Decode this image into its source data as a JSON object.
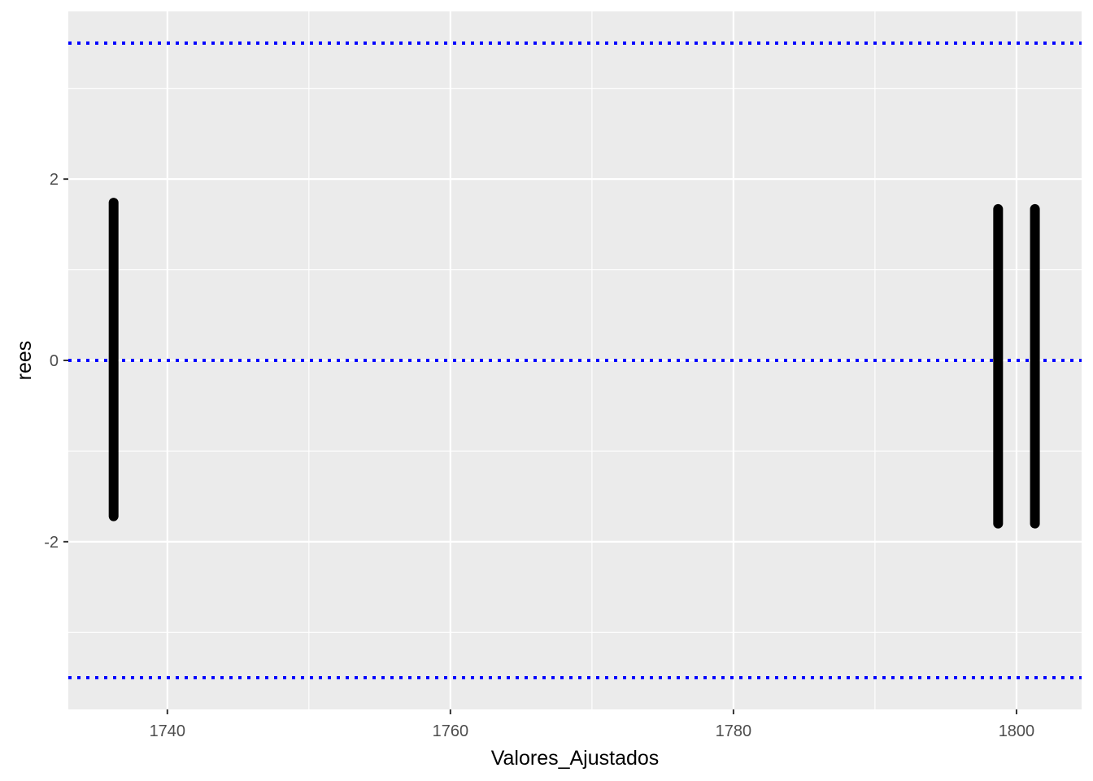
{
  "chart_data": {
    "type": "scatter",
    "title": "",
    "xlabel": "Valores_Ajustados",
    "ylabel": "rees",
    "xlim": [
      1733.0,
      1804.6
    ],
    "ylim": [
      -3.85,
      3.85
    ],
    "x_ticks": [
      1740,
      1760,
      1780,
      1800
    ],
    "y_ticks": [
      -2,
      0,
      2
    ],
    "grid": true,
    "reference_lines": [
      {
        "y": 3.5,
        "style": "dotted",
        "color": "#0000ff"
      },
      {
        "y": 0,
        "style": "dotted",
        "color": "#0000ff"
      },
      {
        "y": -3.5,
        "style": "dotted",
        "color": "#0000ff"
      }
    ],
    "point_clusters": [
      {
        "x": 1736.2,
        "y_min": -1.72,
        "y_max": 1.74
      },
      {
        "x": 1798.7,
        "y_min": -1.8,
        "y_max": 1.67
      },
      {
        "x": 1801.3,
        "y_min": -1.8,
        "y_max": 1.67
      }
    ],
    "colors": {
      "panel": "#ebebeb",
      "grid": "#ffffff",
      "points": "#000000",
      "reference": "#0000ff"
    }
  }
}
